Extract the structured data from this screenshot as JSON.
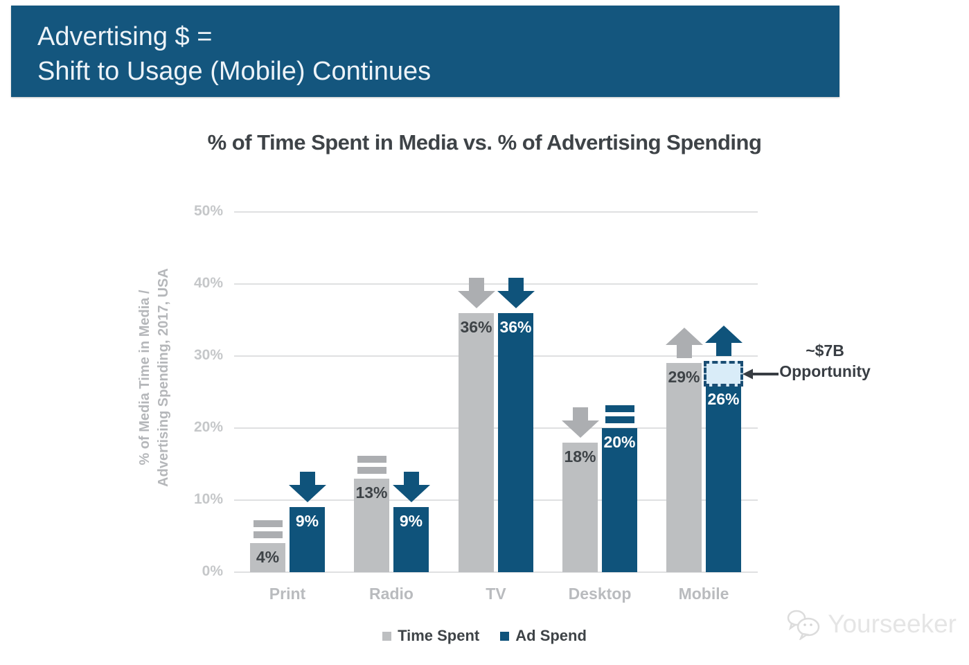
{
  "banner": {
    "line1": "Advertising $ =",
    "line2": "Shift to Usage (Mobile) Continues"
  },
  "chart_data": {
    "type": "bar",
    "title": "% of Time Spent in Media vs. % of Advertising Spending",
    "ylabel_line1": "% of Media Time in Media /",
    "ylabel_line2": "Advertising Spending, 2017, USA",
    "categories": [
      "Print",
      "Radio",
      "TV",
      "Desktop",
      "Mobile"
    ],
    "yticks": [
      "0%",
      "10%",
      "20%",
      "30%",
      "40%",
      "50%"
    ],
    "ylim": [
      0,
      50
    ],
    "grid": true,
    "legend_position": "bottom",
    "series": [
      {
        "name": "Time Spent",
        "color": "#BDBFC1",
        "symbol_color": "#ACAEB1",
        "label_color": "#3E4347",
        "values": [
          4,
          13,
          36,
          18,
          29
        ],
        "labels": [
          "4%",
          "13%",
          "36%",
          "18%",
          "29%"
        ],
        "symbols": [
          "equal",
          "equal",
          "down",
          "down",
          "up"
        ]
      },
      {
        "name": "Ad Spend",
        "color": "#0F537B",
        "symbol_color": "#0F537B",
        "label_color": "#FFFFFF",
        "values": [
          9,
          9,
          36,
          20,
          26
        ],
        "labels": [
          "9%",
          "9%",
          "36%",
          "20%",
          "26%"
        ],
        "symbols": [
          "down",
          "down",
          "down",
          "equal",
          "up"
        ]
      }
    ],
    "annotation": {
      "line1": "~$7B",
      "line2": "Opportunity",
      "target_category": "Mobile",
      "target": "gap between 26% ad spend and 29% time spent"
    }
  },
  "watermark": {
    "text": "Yourseeker"
  },
  "colors": {
    "banner": "#14567E",
    "blue": "#0F537B",
    "gray": "#BDBFC1",
    "grid": "#DFE0E1",
    "tick": "#C5C7C9",
    "cat": "#B9BBBE",
    "lightblue": "#D9ECF8",
    "dashed": "#1A4E74"
  }
}
